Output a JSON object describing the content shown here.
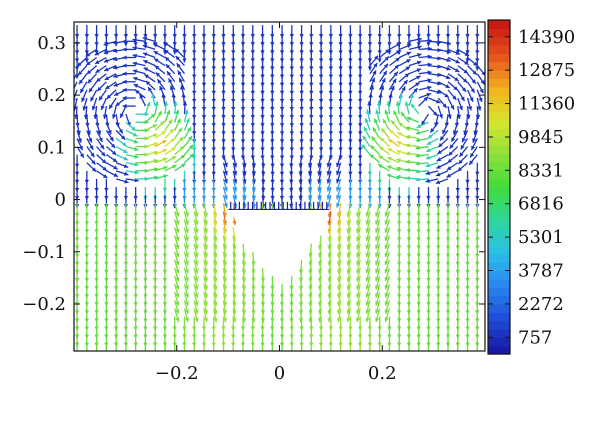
{
  "chart_data": {
    "type": "vector_field",
    "xlim": [
      -0.4,
      0.4
    ],
    "ylim": [
      -0.29,
      0.34
    ],
    "x_ticks": [
      {
        "value": -0.2,
        "label": "−0.2"
      },
      {
        "value": 0,
        "label": "0"
      },
      {
        "value": 0.2,
        "label": "0.2"
      }
    ],
    "y_ticks": [
      {
        "value": 0.3,
        "label": "0.3"
      },
      {
        "value": 0.2,
        "label": "0.2"
      },
      {
        "value": 0.1,
        "label": "0.1"
      },
      {
        "value": 0,
        "label": "0"
      },
      {
        "value": -0.1,
        "label": "−0.1"
      },
      {
        "value": -0.2,
        "label": "−0.2"
      }
    ],
    "cavity": {
      "shape": "inverted-triangle",
      "vertices": [
        [
          -0.1,
          -0.02
        ],
        [
          0.1,
          -0.02
        ],
        [
          0.0,
          -0.155
        ]
      ]
    },
    "colorbar": {
      "min": 0,
      "max": 15150,
      "levels": [
        757,
        2272,
        3787,
        5301,
        6816,
        8331,
        9845,
        11360,
        12875,
        14390
      ],
      "colors": [
        "#1a1aa8",
        "#1d4fd9",
        "#2a86f0",
        "#2bc0e8",
        "#2ed69c",
        "#3fdc3a",
        "#8ee03a",
        "#d6e52e",
        "#f2b31f",
        "#e8551c",
        "#c61a12"
      ]
    },
    "arrow_color_groups": [
      {
        "region": "upper (y > 0)",
        "color": "#1a1aa8"
      },
      {
        "region": "lower (y < 0)",
        "color": "#8ee03a"
      },
      {
        "region": "cavity corners",
        "color": "#c61a12"
      }
    ]
  }
}
